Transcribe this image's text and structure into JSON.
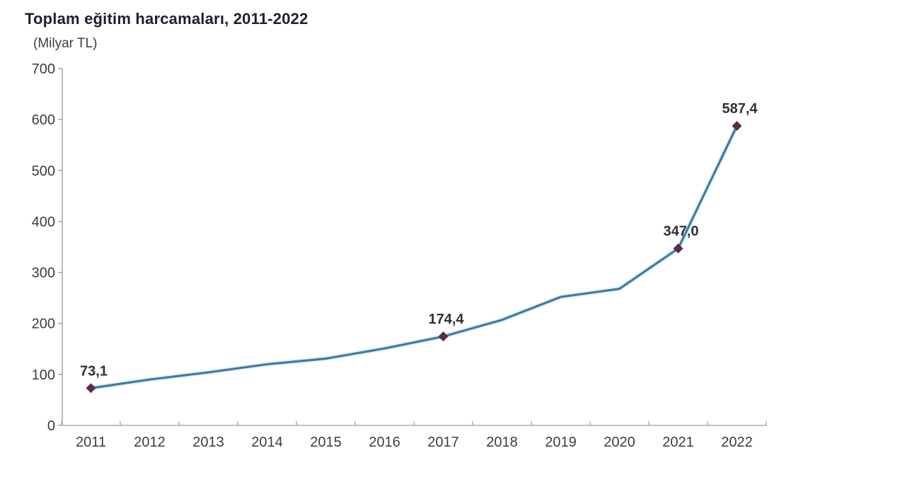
{
  "chart_data": {
    "type": "line",
    "title": "Toplam eğitim harcamaları, 2011-2022",
    "subtitle": "(Milyar TL)",
    "categories": [
      "2011",
      "2012",
      "2013",
      "2014",
      "2015",
      "2016",
      "2017",
      "2018",
      "2019",
      "2020",
      "2021",
      "2022"
    ],
    "series": [
      {
        "name": "Toplam eğitim harcamaları",
        "values": [
          73.1,
          90,
          104,
          120,
          131,
          151,
          174.4,
          207,
          252,
          268,
          347.0,
          587.4
        ]
      }
    ],
    "labeled_points": [
      {
        "category": "2011",
        "index": 0,
        "label": "73,1"
      },
      {
        "category": "2017",
        "index": 6,
        "label": "174,4"
      },
      {
        "category": "2021",
        "index": 10,
        "label": "347,0"
      },
      {
        "category": "2022",
        "index": 11,
        "label": "587,4"
      }
    ],
    "ylim": [
      0,
      700
    ],
    "yticks": [
      0,
      100,
      200,
      300,
      400,
      500,
      600,
      700
    ],
    "grid": false,
    "legend_position": "none",
    "marker_shape": "diamond",
    "colors": {
      "line": "#3f7ba4",
      "line_halo": "#c6e6f2",
      "marker": "#5d2a47",
      "axis": "#ababab",
      "tick_label": "#3d3d3d",
      "title": "#1c2030",
      "subtitle": "#3f3f3f",
      "data_label": "#303030"
    }
  }
}
